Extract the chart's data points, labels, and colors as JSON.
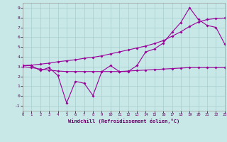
{
  "xlabel": "Windchill (Refroidissement éolien,°C)",
  "background_color": "#c8e8e8",
  "grid_color": "#a8cccc",
  "line_color": "#990099",
  "xlim_min": 0,
  "xlim_max": 23,
  "ylim_min": -1.5,
  "ylim_max": 9.5,
  "yticks": [
    -1,
    0,
    1,
    2,
    3,
    4,
    5,
    6,
    7,
    8,
    9
  ],
  "xticks": [
    0,
    1,
    2,
    3,
    4,
    5,
    6,
    7,
    8,
    9,
    10,
    11,
    12,
    13,
    14,
    15,
    16,
    17,
    18,
    19,
    20,
    21,
    22,
    23
  ],
  "line1_x": [
    0,
    1,
    2,
    3,
    4,
    5,
    6,
    7,
    8,
    9,
    10,
    11,
    12,
    13,
    14,
    15,
    16,
    17,
    18,
    19,
    20,
    21,
    22,
    23
  ],
  "line1_y": [
    3.1,
    3.1,
    2.6,
    2.9,
    2.1,
    -0.7,
    1.5,
    1.3,
    0.05,
    2.5,
    3.1,
    2.5,
    2.5,
    3.1,
    4.5,
    4.8,
    5.4,
    6.5,
    7.5,
    9.0,
    7.8,
    7.2,
    7.0,
    5.3
  ],
  "line2_x": [
    0,
    1,
    2,
    3,
    4,
    5,
    6,
    7,
    8,
    9,
    10,
    11,
    12,
    13,
    14,
    15,
    16,
    17,
    18,
    19,
    20,
    21,
    22,
    23
  ],
  "line2_y": [
    3.1,
    3.15,
    3.25,
    3.35,
    3.5,
    3.6,
    3.7,
    3.85,
    3.95,
    4.1,
    4.3,
    4.5,
    4.7,
    4.9,
    5.1,
    5.35,
    5.65,
    6.1,
    6.55,
    7.1,
    7.55,
    7.8,
    7.9,
    7.95
  ],
  "line3_x": [
    0,
    1,
    2,
    3,
    4,
    5,
    6,
    7,
    8,
    9,
    10,
    11,
    12,
    13,
    14,
    15,
    16,
    17,
    18,
    19,
    20,
    21,
    22,
    23
  ],
  "line3_y": [
    3.0,
    2.9,
    2.75,
    2.65,
    2.55,
    2.5,
    2.5,
    2.5,
    2.5,
    2.5,
    2.5,
    2.5,
    2.55,
    2.6,
    2.65,
    2.7,
    2.75,
    2.8,
    2.85,
    2.9,
    2.9,
    2.9,
    2.9,
    2.9
  ]
}
